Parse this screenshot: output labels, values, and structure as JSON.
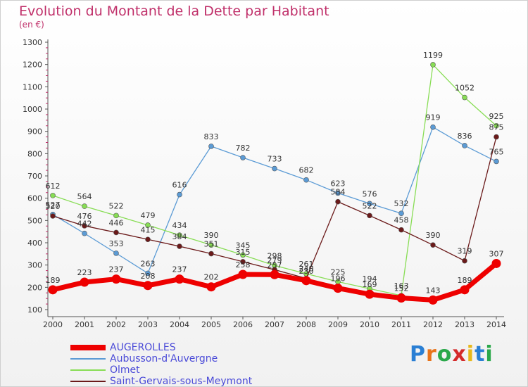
{
  "title": "Evolution du Montant de la Dette par Habitant",
  "unit": "(en €)",
  "logo": "Proxiti",
  "chart_data": {
    "type": "line",
    "x": [
      "2000",
      "2001",
      "2002",
      "2003",
      "2004",
      "2005",
      "2006",
      "2007",
      "2008",
      "2009",
      "2010",
      "2011",
      "2012",
      "2013",
      "2014"
    ],
    "ylim": [
      100,
      1300
    ],
    "yticks": [
      100,
      200,
      300,
      400,
      500,
      600,
      700,
      800,
      900,
      1000,
      1100,
      1200,
      1300
    ],
    "grid": false,
    "legend_position": "bottom-left",
    "series": [
      {
        "name": "AUGEROLLES",
        "color": "#ee0000",
        "values": [
          189,
          223,
          237,
          208,
          237,
          202,
          258,
          257,
          230,
          196,
          169,
          152,
          143,
          189,
          307
        ]
      },
      {
        "name": "Aubusson-d'Auvergne",
        "color": "#5b9bd5",
        "values": [
          527,
          442,
          353,
          263,
          616,
          833,
          782,
          733,
          682,
          623,
          576,
          532,
          919,
          836,
          765
        ]
      },
      {
        "name": "Olmet",
        "color": "#88dd55",
        "values": [
          612,
          564,
          522,
          479,
          434,
          390,
          345,
          298,
          261,
          225,
          194,
          163,
          1199,
          1052,
          925
        ]
      },
      {
        "name": "Saint-Gervais-sous-Meymont",
        "color": "#6b1a1a",
        "values": [
          520,
          476,
          446,
          415,
          384,
          351,
          315,
          279,
          240,
          584,
          522,
          458,
          390,
          319,
          875
        ]
      }
    ]
  }
}
